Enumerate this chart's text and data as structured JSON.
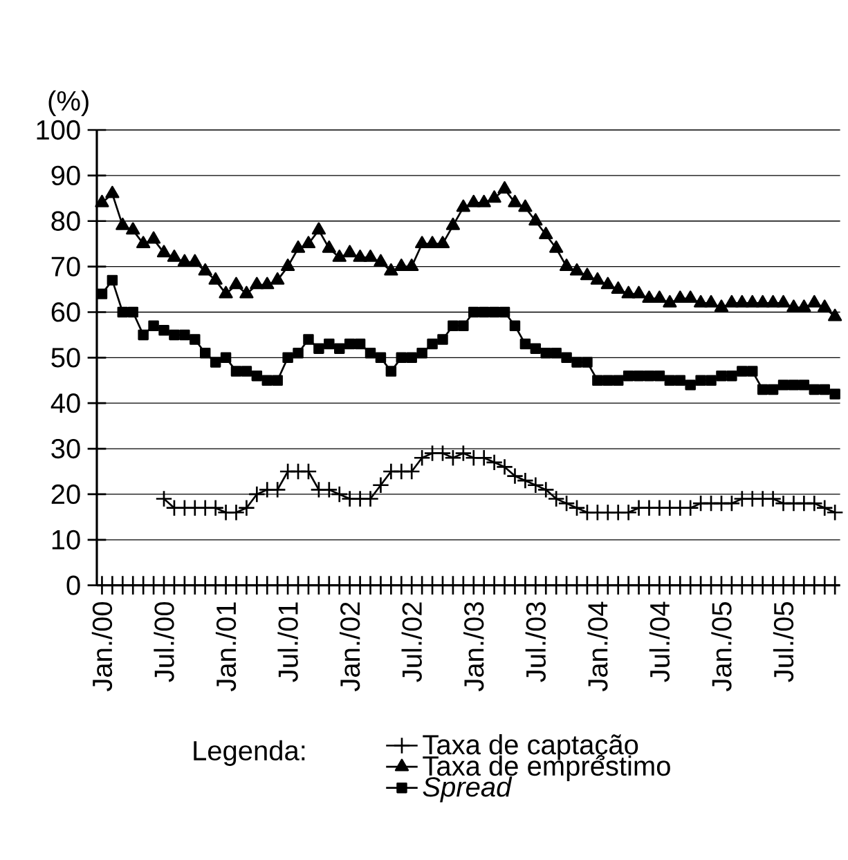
{
  "chart_data": {
    "type": "line",
    "ylabel": "(%)",
    "legend_title": "Legenda:",
    "legend": "bottom",
    "grid": "y",
    "categories": [
      "Jan./00",
      null,
      null,
      null,
      null,
      null,
      "Jul./00",
      null,
      null,
      null,
      null,
      null,
      "Jan./01",
      null,
      null,
      null,
      null,
      null,
      "Jul./01",
      null,
      null,
      null,
      null,
      null,
      "Jan./02",
      null,
      null,
      null,
      null,
      null,
      "Jul./02",
      null,
      null,
      null,
      null,
      null,
      "Jan./03",
      null,
      null,
      null,
      null,
      null,
      "Jul./03",
      null,
      null,
      null,
      null,
      null,
      "Jan./04",
      null,
      null,
      null,
      null,
      null,
      "Jul./04",
      null,
      null,
      null,
      null,
      null,
      "Jan./05",
      null,
      null,
      null,
      null,
      null,
      "Jul./05",
      null,
      null,
      null,
      null,
      null
    ],
    "ylim": [
      0,
      100
    ],
    "yticks": [
      0,
      10,
      20,
      30,
      40,
      50,
      60,
      70,
      80,
      90,
      100
    ],
    "series": [
      {
        "name": "Taxa de captação",
        "color": "#000000",
        "marker": "cross",
        "values": [
          null,
          null,
          null,
          null,
          null,
          null,
          19,
          17,
          17,
          17,
          17,
          17,
          16,
          16,
          17,
          20,
          21,
          21,
          25,
          25,
          25,
          21,
          21,
          20,
          19,
          19,
          19,
          22,
          25,
          25,
          25,
          28,
          29,
          29,
          28,
          29,
          28,
          28,
          27,
          26,
          24,
          23,
          22,
          21,
          19,
          18,
          17,
          16,
          16,
          16,
          16,
          16,
          17,
          17,
          17,
          17,
          17,
          17,
          18,
          18,
          18,
          18,
          19,
          19,
          19,
          19,
          18,
          18,
          18,
          18,
          17,
          16
        ]
      },
      {
        "name": "Taxa de empréstimo",
        "color": "#000000",
        "marker": "triangle",
        "values": [
          84,
          86,
          79,
          78,
          75,
          76,
          73,
          72,
          71,
          71,
          69,
          67,
          64,
          66,
          64,
          66,
          66,
          67,
          70,
          74,
          75,
          78,
          74,
          72,
          73,
          72,
          72,
          71,
          69,
          70,
          70,
          75,
          75,
          75,
          79,
          83,
          84,
          84,
          85,
          87,
          84,
          83,
          80,
          77,
          74,
          70,
          69,
          68,
          67,
          66,
          65,
          64,
          64,
          63,
          63,
          62,
          63,
          63,
          62,
          62,
          61,
          62,
          62,
          62,
          62,
          62,
          62,
          61,
          61,
          62,
          61,
          59
        ]
      },
      {
        "name": "*Spread*",
        "color": "#000000",
        "marker": "square",
        "values": [
          64,
          67,
          60,
          60,
          55,
          57,
          56,
          55,
          55,
          54,
          51,
          49,
          50,
          47,
          47,
          46,
          45,
          45,
          50,
          51,
          54,
          52,
          53,
          52,
          53,
          53,
          51,
          50,
          47,
          50,
          50,
          51,
          53,
          54,
          57,
          57,
          60,
          60,
          60,
          60,
          57,
          53,
          52,
          51,
          51,
          50,
          49,
          49,
          45,
          45,
          45,
          46,
          46,
          46,
          46,
          45,
          45,
          44,
          45,
          45,
          46,
          46,
          47,
          47,
          43,
          43,
          44,
          44,
          44,
          43,
          43,
          42
        ]
      }
    ]
  }
}
